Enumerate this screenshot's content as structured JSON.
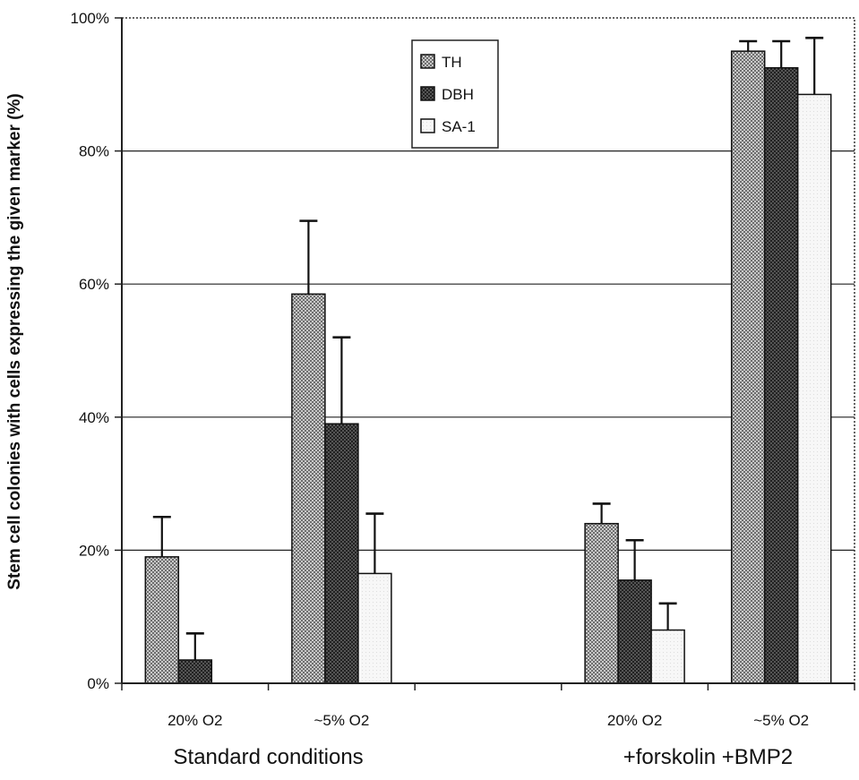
{
  "chart_data": {
    "type": "bar",
    "title": "",
    "ylabel": "Stem cell colonies with cells expressing the given marker (%)",
    "xlabel": "",
    "ylim": [
      0,
      100
    ],
    "y_ticks": [
      "0%",
      "20%",
      "40%",
      "60%",
      "80%",
      "100%"
    ],
    "grid": true,
    "legend_position": "top-center",
    "categories": [
      "20% O2",
      "~5% O2",
      "20% O2",
      "~5% O2"
    ],
    "groups": [
      {
        "label": "Standard conditions",
        "categories": [
          0,
          1
        ]
      },
      {
        "label": "+forskolin +BMP2",
        "categories": [
          2,
          3
        ]
      }
    ],
    "series": [
      {
        "name": "TH",
        "color": "#9a9a9a",
        "pattern": "checker-light",
        "values": [
          19,
          58.5,
          24,
          95
        ],
        "errors": [
          6,
          11,
          3,
          1.5
        ]
      },
      {
        "name": "DBH",
        "color": "#444444",
        "pattern": "checker-dark",
        "values": [
          3.5,
          39,
          15.5,
          92.5
        ],
        "errors": [
          4,
          13,
          6,
          4
        ]
      },
      {
        "name": "SA-1",
        "color": "#f4f4f4",
        "pattern": "plain-light",
        "values": [
          0,
          16.5,
          8,
          88.5
        ],
        "errors": [
          0,
          9,
          4,
          8.5
        ]
      }
    ]
  }
}
